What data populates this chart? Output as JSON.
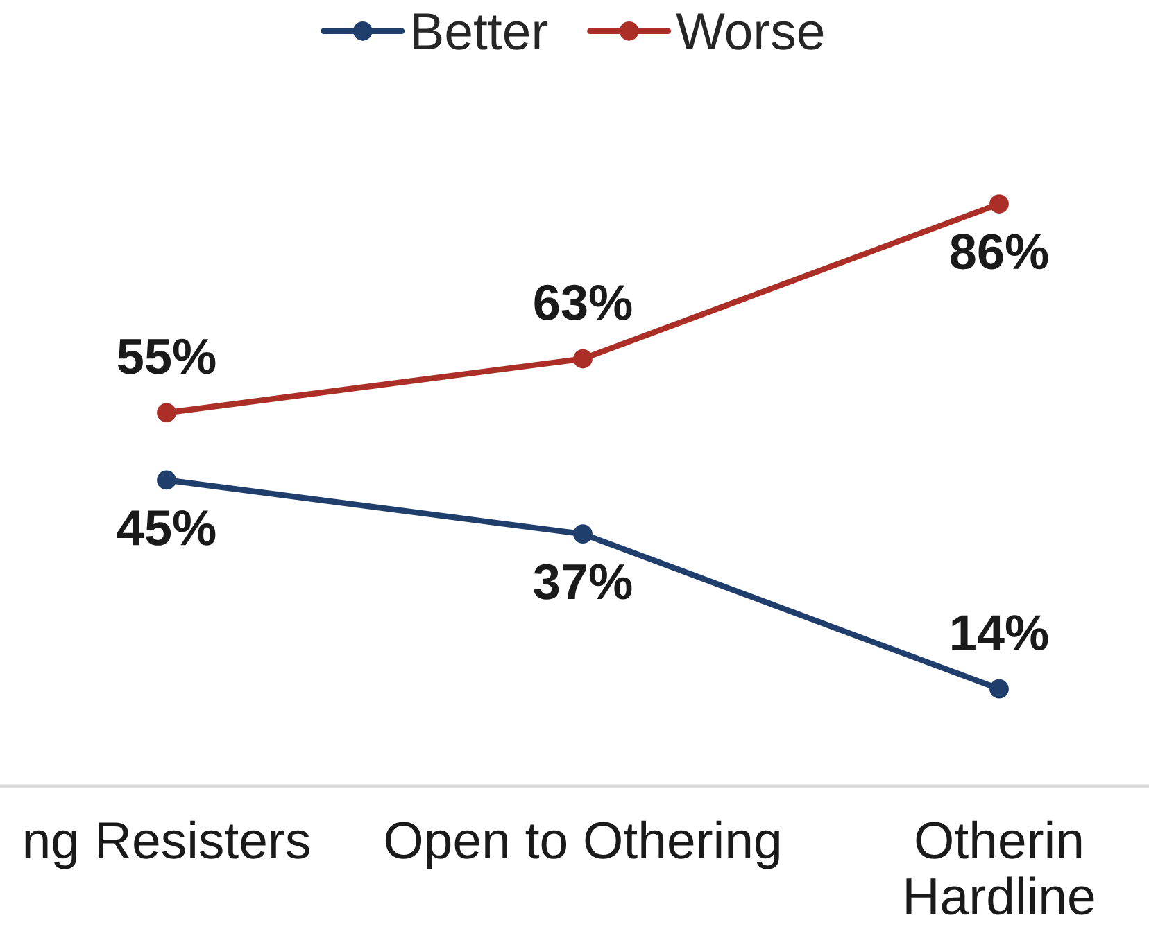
{
  "chart_data": {
    "type": "line",
    "categories": [
      "ng Resisters",
      "Open to Othering",
      "Otherin\nHardline"
    ],
    "series": [
      {
        "name": "Better",
        "color": "#1f3e6c",
        "values": [
          45,
          37,
          14
        ],
        "value_labels": [
          "45%",
          "37%",
          "14%"
        ]
      },
      {
        "name": "Worse",
        "color": "#ab2f27",
        "values": [
          55,
          63,
          86
        ],
        "value_labels": [
          "55%",
          "63%",
          "86%"
        ]
      }
    ],
    "tick_labels": "x",
    "grid": false,
    "legend": "top",
    "marker": "circle",
    "line_style": "solid"
  }
}
